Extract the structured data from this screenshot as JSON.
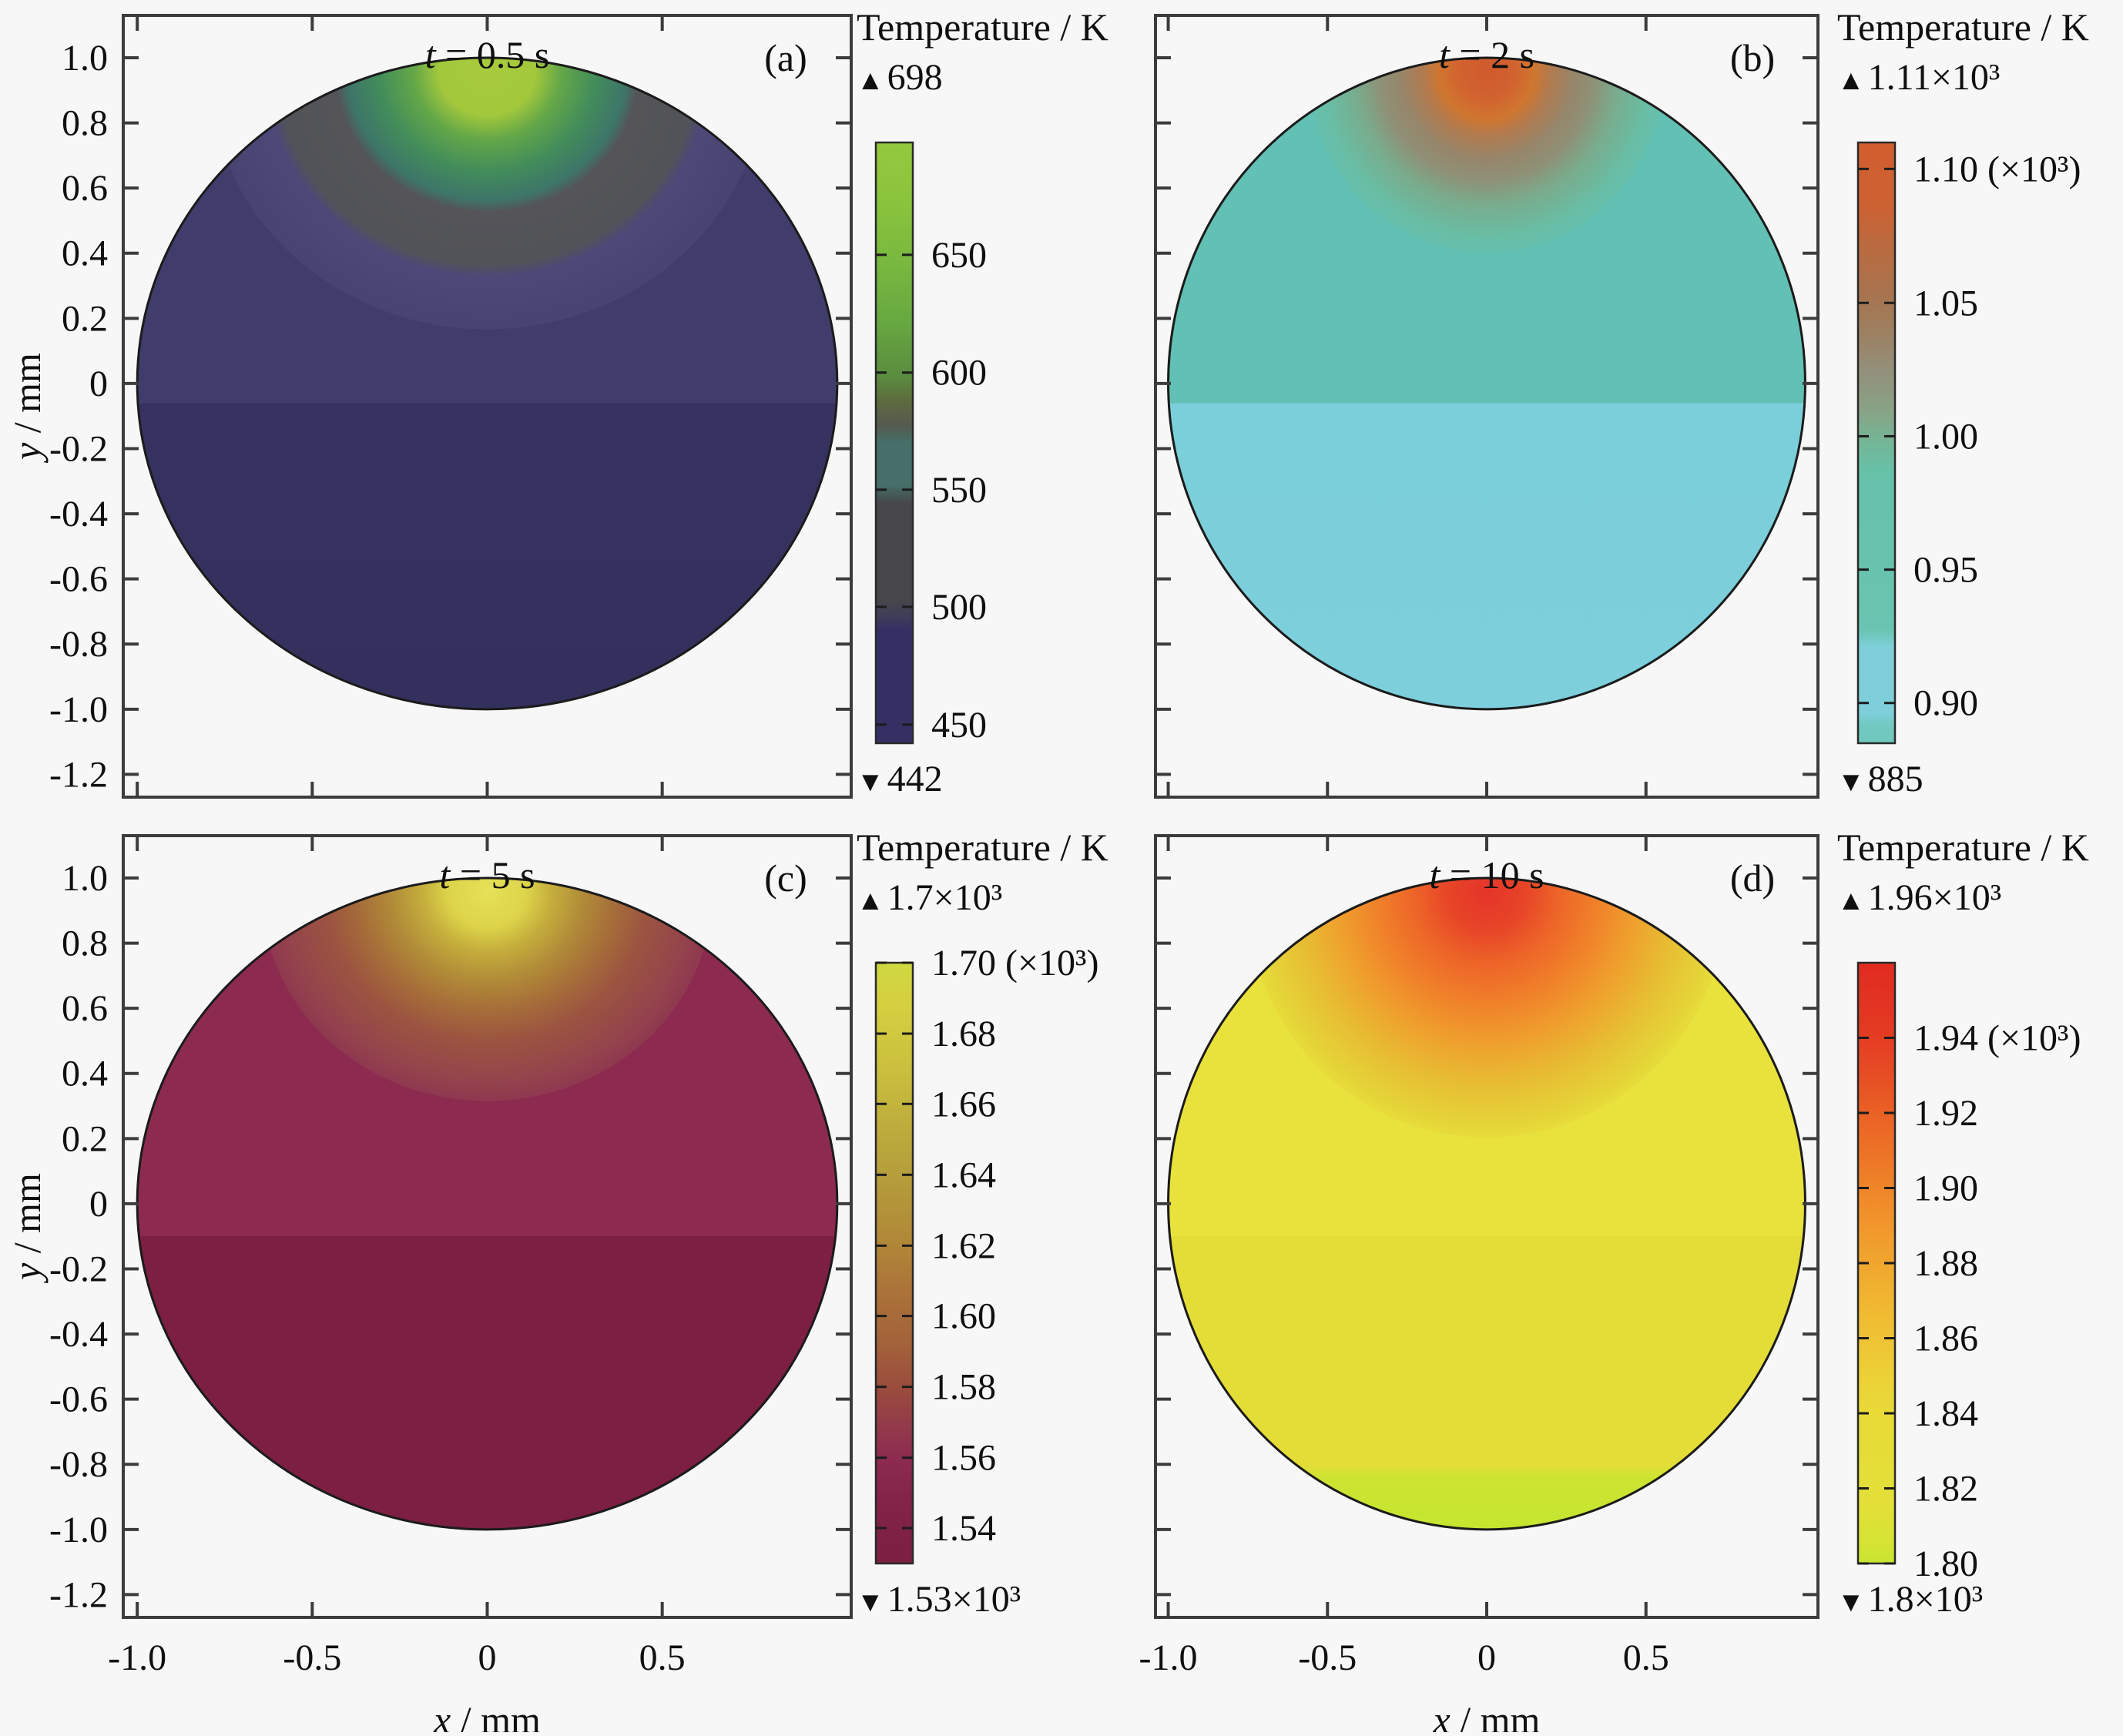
{
  "figure": {
    "background": "#f7f7f7",
    "axis_color": "#3c3c3c",
    "text_color": "#101010",
    "max_marker": "▲",
    "min_marker": "▼"
  },
  "axes": {
    "x_label_var": "x",
    "x_label_rest": " / mm",
    "y_label_var": "y",
    "y_label_rest": " / mm",
    "x_tick_labels": [
      "-1.0",
      "-0.5",
      "0",
      "0.5"
    ],
    "x_tick_values": [
      -1.0,
      -0.5,
      0,
      0.5
    ],
    "y_tick_labels": [
      "1.0",
      "0.8",
      "0.6",
      "0.4",
      "0.2",
      "0",
      "-0.2",
      "-0.4",
      "-0.6",
      "-0.8",
      "-1.0",
      "-1.2"
    ],
    "y_tick_values": [
      1.0,
      0.8,
      0.6,
      0.4,
      0.2,
      0,
      -0.2,
      -0.4,
      -0.6,
      -0.8,
      -1.0,
      -1.2
    ]
  },
  "panels": [
    {
      "id": "a",
      "row": 0,
      "col": 0,
      "letter": "(a)",
      "title_var": "t",
      "title_rest": " = 0.5 s",
      "colorbar": {
        "title": "Temperature / K",
        "max_label": "698",
        "min_label": "442",
        "ticks": [
          {
            "label": "450",
            "pos": 0.031
          },
          {
            "label": "500",
            "pos": 0.227
          },
          {
            "label": "550",
            "pos": 0.422
          },
          {
            "label": "600",
            "pos": 0.617
          },
          {
            "label": "650",
            "pos": 0.813
          }
        ],
        "gradient": [
          [
            0,
            "#353064"
          ],
          [
            0.19,
            "#353064"
          ],
          [
            0.21,
            "#3f3d59"
          ],
          [
            0.24,
            "#47474b"
          ],
          [
            0.4,
            "#47474b"
          ],
          [
            0.43,
            "#456f68"
          ],
          [
            0.5,
            "#456f68"
          ],
          [
            0.53,
            "#555a50"
          ],
          [
            0.57,
            "#5e6b3e"
          ],
          [
            0.61,
            "#5a8c3f"
          ],
          [
            0.7,
            "#67a841"
          ],
          [
            0.8,
            "#79b83f"
          ],
          [
            0.9,
            "#8ac43d"
          ],
          [
            1,
            "#93c93e"
          ]
        ]
      },
      "circle": {
        "body": [
          [
            0,
            "#403c6b"
          ],
          [
            0.53,
            "#403c6b"
          ],
          [
            0.53,
            "#373260"
          ],
          [
            1,
            "#34305d"
          ]
        ],
        "hotspot": [
          [
            0,
            "#a7cb3c"
          ],
          [
            0.11,
            "#a3c83c"
          ],
          [
            0.17,
            "#64a748"
          ],
          [
            0.25,
            "#428c5b"
          ],
          [
            0.32,
            "#3e7569"
          ],
          [
            0.35,
            "#545459"
          ],
          [
            0.48,
            "#525358"
          ],
          [
            0.51,
            "#4d4878"
          ],
          [
            0.64,
            "#484371",
            1
          ],
          [
            0.64,
            "#484371",
            0
          ]
        ]
      }
    },
    {
      "id": "b",
      "row": 0,
      "col": 1,
      "letter": "(b)",
      "title_var": "t",
      "title_rest": " = 2 s",
      "colorbar": {
        "title": "Temperature / K",
        "max_label": "1.11×10³",
        "min_label": "885",
        "ticks": [
          {
            "label": "0.90",
            "pos": 0.067
          },
          {
            "label": "0.95",
            "pos": 0.289
          },
          {
            "label": "1.00",
            "pos": 0.511
          },
          {
            "label": "1.05",
            "pos": 0.733
          },
          {
            "label": "1.10 (×10³)",
            "pos": 0.956
          }
        ],
        "gradient": [
          [
            0,
            "#6fc8bb"
          ],
          [
            0.03,
            "#72c9c2"
          ],
          [
            0.05,
            "#7ecfda"
          ],
          [
            0.16,
            "#7ecfda"
          ],
          [
            0.19,
            "#68c4b0"
          ],
          [
            0.45,
            "#66c2a9"
          ],
          [
            0.5,
            "#74b697"
          ],
          [
            0.56,
            "#8aa184"
          ],
          [
            0.62,
            "#93907b"
          ],
          [
            0.68,
            "#9c8162"
          ],
          [
            0.75,
            "#a8734e"
          ],
          [
            0.83,
            "#bb6a3f"
          ],
          [
            0.89,
            "#cc6233"
          ],
          [
            1,
            "#d25d2e"
          ]
        ]
      },
      "circle": {
        "body": [
          [
            0,
            "#62c0b4"
          ],
          [
            0.53,
            "#62c0b4"
          ],
          [
            0.53,
            "#7bcfda"
          ],
          [
            1,
            "#7ccfdb"
          ]
        ],
        "hotspot": [
          [
            0,
            "#cf5a2e"
          ],
          [
            0.07,
            "#d2622f"
          ],
          [
            0.12,
            "#d0762f"
          ],
          [
            0.16,
            "#b27a4e"
          ],
          [
            0.22,
            "#96866b"
          ],
          [
            0.27,
            "#8f9076"
          ],
          [
            0.33,
            "#7aab8c"
          ],
          [
            0.41,
            "#69bda4"
          ],
          [
            0.45,
            "#66c0ae",
            1
          ],
          [
            0.45,
            "#66c0ae",
            0
          ]
        ]
      }
    },
    {
      "id": "c",
      "row": 1,
      "col": 0,
      "letter": "(c)",
      "title_var": "t",
      "title_rest": " = 5 s",
      "colorbar": {
        "title": "Temperature / K",
        "max_label": "1.7×10³",
        "min_label": "1.53×10³",
        "ticks": [
          {
            "label": "1.54",
            "pos": 0.059
          },
          {
            "label": "1.56",
            "pos": 0.176
          },
          {
            "label": "1.58",
            "pos": 0.294
          },
          {
            "label": "1.60",
            "pos": 0.412
          },
          {
            "label": "1.62",
            "pos": 0.529
          },
          {
            "label": "1.64",
            "pos": 0.647
          },
          {
            "label": "1.66",
            "pos": 0.765
          },
          {
            "label": "1.68",
            "pos": 0.882
          },
          {
            "label": "1.70 (×10³)",
            "pos": 1.0
          }
        ],
        "gradient": [
          [
            0,
            "#7c1f42"
          ],
          [
            0.1,
            "#822347"
          ],
          [
            0.17,
            "#8c2a4f"
          ],
          [
            0.23,
            "#933a4b"
          ],
          [
            0.29,
            "#9a4c3d"
          ],
          [
            0.37,
            "#a4633a"
          ],
          [
            0.45,
            "#ab7239"
          ],
          [
            0.52,
            "#b08438"
          ],
          [
            0.6,
            "#b3953a"
          ],
          [
            0.68,
            "#b8a43c"
          ],
          [
            0.76,
            "#c2b33d"
          ],
          [
            0.84,
            "#ccc23e"
          ],
          [
            0.93,
            "#d5cf40"
          ],
          [
            1,
            "#cfd83f"
          ]
        ]
      },
      "circle": {
        "body": [
          [
            0,
            "#8d2a4f"
          ],
          [
            0.55,
            "#8d2a4f"
          ],
          [
            0.55,
            "#7c1f42"
          ],
          [
            1,
            "#7c1f42"
          ]
        ],
        "hotspot": [
          [
            0,
            "#e6e158"
          ],
          [
            0.09,
            "#ddd44a"
          ],
          [
            0.15,
            "#c5ad3c"
          ],
          [
            0.22,
            "#b18c38"
          ],
          [
            0.29,
            "#a76f39"
          ],
          [
            0.37,
            "#9c5440"
          ],
          [
            0.48,
            "#93424d"
          ],
          [
            0.52,
            "#8f3850",
            1
          ],
          [
            0.52,
            "#8f3850",
            0
          ]
        ]
      }
    },
    {
      "id": "d",
      "row": 1,
      "col": 1,
      "letter": "(d)",
      "title_var": "t",
      "title_rest": " = 10 s",
      "colorbar": {
        "title": "Temperature / K",
        "max_label": "1.96×10³",
        "min_label": "1.8×10³",
        "ticks": [
          {
            "label": "1.80",
            "pos": 0.0
          },
          {
            "label": "1.82",
            "pos": 0.125
          },
          {
            "label": "1.84",
            "pos": 0.25
          },
          {
            "label": "1.86",
            "pos": 0.375
          },
          {
            "label": "1.88",
            "pos": 0.5
          },
          {
            "label": "1.90",
            "pos": 0.625
          },
          {
            "label": "1.92",
            "pos": 0.75
          },
          {
            "label": "1.94 (×10³)",
            "pos": 0.875
          }
        ],
        "gradient": [
          [
            0,
            "#c8e431"
          ],
          [
            0.04,
            "#d7e335"
          ],
          [
            0.1,
            "#e3df38"
          ],
          [
            0.25,
            "#e8da37"
          ],
          [
            0.31,
            "#ecd136"
          ],
          [
            0.37,
            "#eec434"
          ],
          [
            0.44,
            "#f0b531"
          ],
          [
            0.5,
            "#f0a62e"
          ],
          [
            0.56,
            "#f1972c"
          ],
          [
            0.62,
            "#ef8629"
          ],
          [
            0.68,
            "#ed7427"
          ],
          [
            0.75,
            "#ea6125"
          ],
          [
            0.81,
            "#e74e24"
          ],
          [
            0.88,
            "#e43b23"
          ],
          [
            1,
            "#e02b20"
          ]
        ]
      },
      "circle": {
        "body": [
          [
            0,
            "#e9e13c"
          ],
          [
            0.55,
            "#e9e13c"
          ],
          [
            0.55,
            "#e5dd37"
          ],
          [
            0.9,
            "#e5dd37"
          ],
          [
            0.92,
            "#cde332"
          ],
          [
            1,
            "#c4e62f"
          ]
        ],
        "hotspot": [
          [
            0,
            "#e5342a"
          ],
          [
            0.1,
            "#e74528"
          ],
          [
            0.18,
            "#ed6428"
          ],
          [
            0.28,
            "#f0812a"
          ],
          [
            0.38,
            "#efa02d"
          ],
          [
            0.48,
            "#e7bd33"
          ],
          [
            0.58,
            "#e5d438"
          ],
          [
            0.61,
            "#e7dc3a",
            1
          ],
          [
            0.61,
            "#e7dc3a",
            0
          ]
        ]
      }
    }
  ],
  "chart_data": [
    {
      "type": "heatmap",
      "panel": "(a)",
      "title": "t = 0.5 s",
      "xlabel": "x / mm",
      "ylabel": "y / mm",
      "x_ticks": [
        -1.0,
        -0.5,
        0,
        0.5
      ],
      "y_ticks": [
        1.0,
        0.8,
        0.6,
        0.4,
        0.2,
        0,
        -0.2,
        -0.4,
        -0.6,
        -0.8,
        -1.0,
        -1.2
      ],
      "geometry": "circular cross-section, radius 1 mm, centered at origin, hottest at top edge (x=0, y=1)",
      "colorbar_label": "Temperature / K",
      "temperature_max_K": 698,
      "temperature_min_K": 442,
      "colorbar_ticks_K": [
        450,
        500,
        550,
        600,
        650
      ]
    },
    {
      "type": "heatmap",
      "panel": "(b)",
      "title": "t = 2 s",
      "xlabel": "x / mm",
      "ylabel": "y / mm",
      "x_ticks": [
        -1.0,
        -0.5,
        0,
        0.5
      ],
      "y_ticks": [
        1.0,
        0.8,
        0.6,
        0.4,
        0.2,
        0,
        -0.2,
        -0.4,
        -0.6,
        -0.8,
        -1.0,
        -1.2
      ],
      "geometry": "circular cross-section, radius 1 mm, centered at origin, hottest at top edge (x=0, y=1)",
      "colorbar_label": "Temperature / K",
      "temperature_max_K": 1110,
      "temperature_min_K": 885,
      "colorbar_ticks_K": [
        900,
        950,
        1000,
        1050,
        1100
      ],
      "colorbar_tick_labels": [
        "0.90",
        "0.95",
        "1.00",
        "1.05",
        "1.10 (×10³)"
      ]
    },
    {
      "type": "heatmap",
      "panel": "(c)",
      "title": "t = 5 s",
      "xlabel": "x / mm",
      "ylabel": "y / mm",
      "x_ticks": [
        -1.0,
        -0.5,
        0,
        0.5
      ],
      "y_ticks": [
        1.0,
        0.8,
        0.6,
        0.4,
        0.2,
        0,
        -0.2,
        -0.4,
        -0.6,
        -0.8,
        -1.0,
        -1.2
      ],
      "geometry": "circular cross-section, radius 1 mm, centered at origin, hottest at top edge (x=0, y=1)",
      "colorbar_label": "Temperature / K",
      "temperature_max_K": 1700,
      "temperature_min_K": 1530,
      "colorbar_ticks_K": [
        1540,
        1560,
        1580,
        1600,
        1620,
        1640,
        1660,
        1680,
        1700
      ],
      "colorbar_tick_labels": [
        "1.54",
        "1.56",
        "1.58",
        "1.60",
        "1.62",
        "1.64",
        "1.66",
        "1.68",
        "1.70 (×10³)"
      ]
    },
    {
      "type": "heatmap",
      "panel": "(d)",
      "title": "t = 10 s",
      "xlabel": "x / mm",
      "ylabel": "y / mm",
      "x_ticks": [
        -1.0,
        -0.5,
        0,
        0.5
      ],
      "y_ticks": [
        1.0,
        0.8,
        0.6,
        0.4,
        0.2,
        0,
        -0.2,
        -0.4,
        -0.6,
        -0.8,
        -1.0,
        -1.2
      ],
      "geometry": "circular cross-section, radius 1 mm, centered at origin, hottest at top edge (x=0, y=1)",
      "colorbar_label": "Temperature / K",
      "temperature_max_K": 1960,
      "temperature_min_K": 1800,
      "colorbar_ticks_K": [
        1800,
        1820,
        1840,
        1860,
        1880,
        1900,
        1920,
        1940
      ],
      "colorbar_tick_labels": [
        "1.80",
        "1.82",
        "1.84",
        "1.86",
        "1.88",
        "1.90",
        "1.92",
        "1.94 (×10³)"
      ]
    }
  ]
}
